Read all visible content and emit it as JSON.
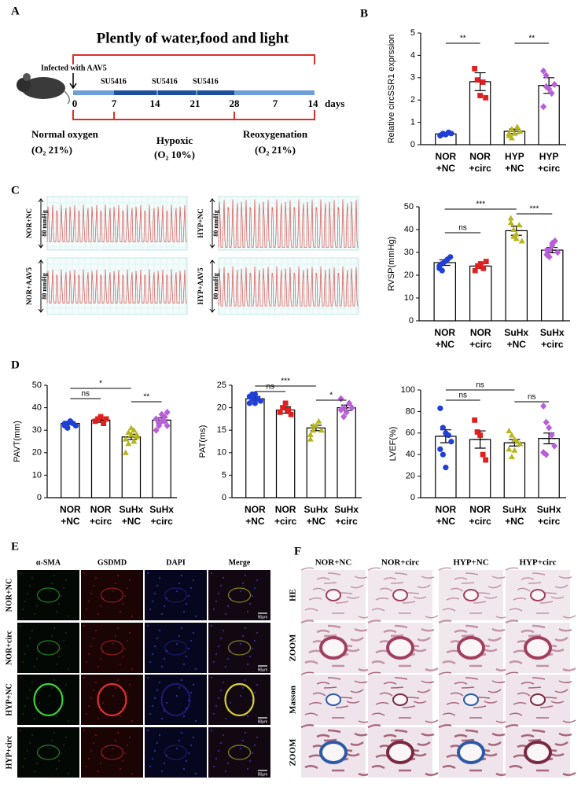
{
  "panel_labels": [
    "A",
    "B",
    "C",
    "D",
    "E",
    "F"
  ],
  "timeline": {
    "title": "Plently of water,food and light",
    "injection": "Infected with AAV5",
    "drug": [
      "SU5416",
      "SU5416",
      "SU5416"
    ],
    "days": [
      "0",
      "7",
      "14",
      "21",
      "28",
      "7",
      "14"
    ],
    "unit": "days",
    "phases": [
      {
        "name": "Normal oxygen",
        "oxygen": "(O₂ 21%)"
      },
      {
        "name": "Hypoxic",
        "oxygen": "(O₂ 10%)"
      },
      {
        "name": "Reoxygenation",
        "oxygen": "(O₂ 21%)"
      }
    ]
  },
  "traces": [
    {
      "group": "NOR+NC",
      "scale": "80 mmHg"
    },
    {
      "group": "HYP+NC",
      "scale": "80 mmHg"
    },
    {
      "group": "NOR+AAV5",
      "scale": "80 mmHg"
    },
    {
      "group": "HYP+AAV5",
      "scale": "80 mmHg"
    }
  ],
  "immunofluorescence": {
    "channels": [
      "α-SMA",
      "GSDMD",
      "DAPI",
      "Merge"
    ],
    "groups": [
      "NOR+NC",
      "NOR+circ",
      "HYP+NC",
      "HYP+circ"
    ],
    "scale_bar": "50μm"
  },
  "histology": {
    "groups": [
      "NOR+NC",
      "NOR+circ",
      "HYP+NC",
      "HYP+circ"
    ],
    "stains": [
      "HE",
      "ZOOM",
      "Masson",
      "ZOOM"
    ]
  },
  "chart_data": [
    {
      "type": "bar",
      "ylabel": "Relative circSSR1 exprssion",
      "categories": [
        [
          "NOR",
          "+NC"
        ],
        [
          "NOR",
          "+circ"
        ],
        [
          "HYP",
          "+NC"
        ],
        [
          "HYP",
          "+circ"
        ]
      ],
      "values": [
        0.48,
        2.82,
        0.6,
        2.65
      ],
      "errors": [
        0.05,
        0.4,
        0.1,
        0.35
      ],
      "points": [
        [
          0.4,
          0.5,
          0.45,
          0.55,
          0.5,
          0.42,
          0.48
        ],
        [
          3.4,
          2.9,
          2.2,
          2.8,
          2.1
        ],
        [
          0.4,
          0.7,
          0.5,
          0.8,
          0.6,
          0.5,
          0.3
        ],
        [
          3.3,
          3.1,
          2.5,
          2.3,
          2.7,
          1.7,
          2.6
        ]
      ],
      "colors": [
        "#1f3fd6",
        "#e0201e",
        "#b5b51c",
        "#b85fd8"
      ],
      "ylim": [
        0,
        5
      ],
      "yticks": [
        0,
        1,
        2,
        3,
        4,
        5
      ],
      "annotations": [
        "**",
        "**"
      ]
    },
    {
      "type": "bar",
      "ylabel": "RVSP(mmHg)",
      "categories": [
        [
          "NOR",
          "+NC"
        ],
        [
          "NOR",
          "+circ"
        ],
        [
          "SuHx",
          "+NC"
        ],
        [
          "SuHx",
          "+circ"
        ]
      ],
      "values": [
        25.5,
        24,
        39.5,
        31
      ],
      "errors": [
        1.2,
        1,
        2,
        1.2
      ],
      "points": [
        [
          23,
          25,
          26,
          27,
          28,
          24,
          22
        ],
        [
          22,
          24,
          25,
          23,
          26
        ],
        [
          45,
          40,
          38,
          42,
          35,
          43,
          37,
          36
        ],
        [
          29,
          31,
          33,
          35,
          30,
          31,
          28,
          34
        ]
      ],
      "colors": [
        "#1f3fd6",
        "#e0201e",
        "#b5b51c",
        "#b85fd8"
      ],
      "ylim": [
        0,
        50
      ],
      "yticks": [
        0,
        10,
        20,
        30,
        40,
        50
      ],
      "annotations": [
        "ns",
        "***",
        "***"
      ]
    },
    {
      "type": "bar",
      "ylabel": "PAVT(mm)",
      "categories": [
        [
          "NOR",
          "+NC"
        ],
        [
          "NOR",
          "+circ"
        ],
        [
          "SuHx",
          "+NC"
        ],
        [
          "SuHx",
          "+circ"
        ]
      ],
      "values": [
        33,
        34.5,
        27,
        34.5
      ],
      "errors": [
        0.5,
        1,
        1.2,
        1
      ],
      "points": [
        [
          32,
          33,
          34,
          33,
          32,
          33,
          31,
          34
        ],
        [
          34,
          35,
          36,
          33,
          35
        ],
        [
          20,
          24,
          28,
          30,
          27,
          26,
          29,
          31,
          25,
          28
        ],
        [
          30,
          32,
          34,
          36,
          38,
          35,
          33,
          37,
          34,
          32
        ]
      ],
      "colors": [
        "#1f3fd6",
        "#e0201e",
        "#b5b51c",
        "#b85fd8"
      ],
      "ylim": [
        0,
        50
      ],
      "yticks": [
        0,
        10,
        20,
        30,
        40,
        50
      ],
      "annotations": [
        "ns",
        "*",
        "**"
      ]
    },
    {
      "type": "bar",
      "ylabel": "PAT(ms)",
      "categories": [
        [
          "NOR",
          "+NC"
        ],
        [
          "NOR",
          "+circ"
        ],
        [
          "SuHx",
          "+NC"
        ],
        [
          "SuHx",
          "+circ"
        ]
      ],
      "values": [
        22,
        19.5,
        15.5,
        20
      ],
      "errors": [
        0.5,
        0.7,
        0.6,
        0.6
      ],
      "points": [
        [
          21,
          22,
          23,
          22,
          21.5,
          22.5,
          23,
          21
        ],
        [
          19,
          20,
          21,
          19.5,
          18.5
        ],
        [
          13,
          15,
          16,
          17,
          15,
          14,
          16
        ],
        [
          22,
          20,
          19,
          21,
          20,
          19.5,
          18
        ]
      ],
      "colors": [
        "#1f3fd6",
        "#e0201e",
        "#b5b51c",
        "#b85fd8"
      ],
      "ylim": [
        0,
        25
      ],
      "yticks": [
        0,
        5,
        10,
        15,
        20,
        25
      ],
      "annotations": [
        "ns",
        "***",
        "*"
      ]
    },
    {
      "type": "bar",
      "ylabel": "LVEF(%)",
      "categories": [
        [
          "NOR",
          "+NC"
        ],
        [
          "NOR",
          "+circ"
        ],
        [
          "SuHx",
          "+NC"
        ],
        [
          "SuHx",
          "+circ"
        ]
      ],
      "values": [
        57,
        54,
        51,
        55
      ],
      "errors": [
        6,
        8,
        3,
        5
      ],
      "points": [
        [
          83,
          65,
          60,
          58,
          52,
          45,
          40,
          28
        ],
        [
          72,
          61,
          58,
          40,
          35
        ],
        [
          62,
          58,
          54,
          52,
          50,
          45,
          38,
          44
        ],
        [
          85,
          70,
          65,
          58,
          48,
          42,
          40
        ]
      ],
      "colors": [
        "#1f3fd6",
        "#e0201e",
        "#b5b51c",
        "#b85fd8"
      ],
      "ylim": [
        0,
        100
      ],
      "yticks": [
        0,
        20,
        40,
        60,
        80,
        100
      ],
      "annotations": [
        "ns",
        "ns",
        "ns"
      ]
    }
  ]
}
